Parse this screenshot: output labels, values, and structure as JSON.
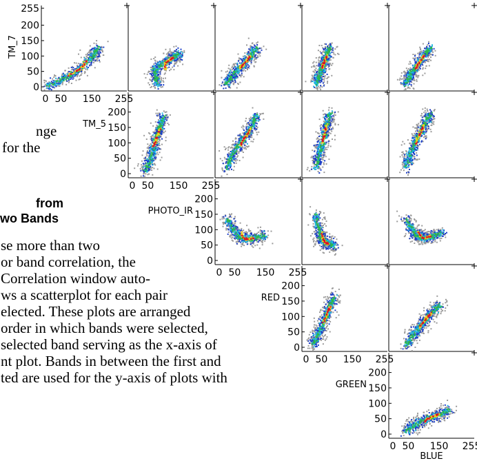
{
  "text_lines": [
    "nge",
    "for the",
    "from",
    "wo Bands",
    "se  more  than  two",
    "or band correlation, the",
    "Correlation window auto-",
    "ws a scatterplot for each pair",
    "elected.  These plots are arranged",
    "order in which bands were selected,",
    "selected band serving as the x-axis of",
    "nt plot.  Bands in between the first and",
    "ted are used for the y-axis of plots with"
  ],
  "bands": [
    "TM_7",
    "TM_5",
    "PHOTO_IR",
    "RED",
    "GREEN",
    "BLUE"
  ],
  "x_axis_band": "BLUE",
  "y_ticks": {
    "TM_7": [
      "0",
      "50",
      "100",
      "150",
      "200",
      "255"
    ],
    "TM_5": [
      "0",
      "50",
      "100",
      "150",
      "200"
    ],
    "PHOTO_IR": [
      "0",
      "50",
      "100",
      "150",
      "200"
    ],
    "RED": [
      "0",
      "50",
      "100",
      "150",
      "200"
    ],
    "GREEN": [
      "0",
      "50",
      "100",
      "150",
      "200"
    ]
  },
  "x_ticks": [
    "0",
    "50",
    "150",
    "255"
  ],
  "density_colors": {
    "low": "#9a9a9a",
    "mid_low": "#1a3cc8",
    "mid": "#1fb7e0",
    "mid_high": "#2fb84a",
    "high": "#f2d21a",
    "peak": "#d8102a"
  },
  "chart_data": {
    "type": "scatter",
    "title": "",
    "encoding": "density scatterplot matrix, color indicates point density",
    "axis_range": [
      0,
      255
    ],
    "panels": [
      {
        "x_band": "TM_5",
        "y_band": "TM_7",
        "cluster": [
          [
            0,
            0
          ],
          [
            60,
            30
          ],
          [
            110,
            60
          ],
          [
            150,
            100
          ],
          [
            170,
            130
          ]
        ]
      },
      {
        "x_band": "PHOTO_IR",
        "y_band": "TM_7",
        "cluster": [
          [
            80,
            5
          ],
          [
            70,
            60
          ],
          [
            120,
            90
          ],
          [
            150,
            110
          ]
        ]
      },
      {
        "x_band": "RED",
        "y_band": "TM_7",
        "cluster": [
          [
            20,
            10
          ],
          [
            50,
            50
          ],
          [
            90,
            90
          ],
          [
            120,
            130
          ]
        ]
      },
      {
        "x_band": "GREEN",
        "y_band": "TM_7",
        "cluster": [
          [
            30,
            10
          ],
          [
            45,
            50
          ],
          [
            60,
            90
          ],
          [
            75,
            130
          ]
        ]
      },
      {
        "x_band": "BLUE",
        "y_band": "TM_7",
        "cluster": [
          [
            40,
            10
          ],
          [
            60,
            50
          ],
          [
            90,
            90
          ],
          [
            120,
            130
          ]
        ]
      },
      {
        "x_band": "PHOTO_IR",
        "y_band": "TM_5",
        "cluster": [
          [
            40,
            10
          ],
          [
            60,
            60
          ],
          [
            80,
            130
          ],
          [
            100,
            190
          ]
        ]
      },
      {
        "x_band": "RED",
        "y_band": "TM_5",
        "cluster": [
          [
            20,
            20
          ],
          [
            50,
            80
          ],
          [
            90,
            130
          ],
          [
            120,
            190
          ]
        ]
      },
      {
        "x_band": "GREEN",
        "y_band": "TM_5",
        "cluster": [
          [
            30,
            20
          ],
          [
            45,
            80
          ],
          [
            60,
            140
          ],
          [
            75,
            200
          ]
        ]
      },
      {
        "x_band": "BLUE",
        "y_band": "TM_5",
        "cluster": [
          [
            40,
            20
          ],
          [
            60,
            80
          ],
          [
            90,
            140
          ],
          [
            120,
            200
          ]
        ]
      },
      {
        "x_band": "RED",
        "y_band": "PHOTO_IR",
        "cluster": [
          [
            20,
            140
          ],
          [
            60,
            80
          ],
          [
            90,
            70
          ],
          [
            150,
            85
          ]
        ]
      },
      {
        "x_band": "GREEN",
        "y_band": "PHOTO_IR",
        "cluster": [
          [
            30,
            150
          ],
          [
            45,
            80
          ],
          [
            60,
            60
          ],
          [
            90,
            50
          ]
        ]
      },
      {
        "x_band": "BLUE",
        "y_band": "PHOTO_IR",
        "cluster": [
          [
            40,
            140
          ],
          [
            70,
            85
          ],
          [
            100,
            75
          ],
          [
            160,
            90
          ]
        ]
      },
      {
        "x_band": "GREEN",
        "y_band": "RED",
        "cluster": [
          [
            20,
            10
          ],
          [
            45,
            60
          ],
          [
            70,
            120
          ],
          [
            90,
            170
          ]
        ]
      },
      {
        "x_band": "BLUE",
        "y_band": "RED",
        "cluster": [
          [
            40,
            10
          ],
          [
            70,
            50
          ],
          [
            110,
            100
          ],
          [
            150,
            140
          ]
        ]
      },
      {
        "x_band": "BLUE",
        "y_band": "GREEN",
        "cluster": [
          [
            40,
            10
          ],
          [
            80,
            40
          ],
          [
            130,
            60
          ],
          [
            180,
            80
          ]
        ]
      }
    ]
  }
}
